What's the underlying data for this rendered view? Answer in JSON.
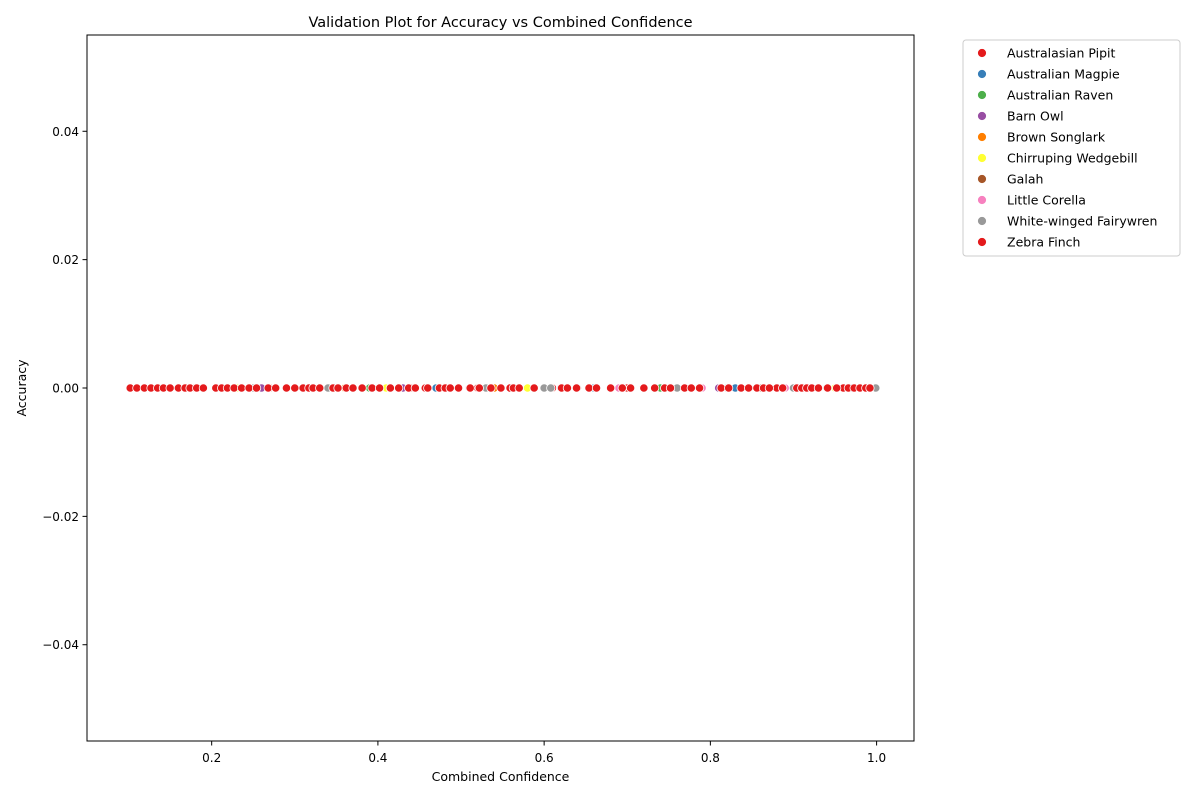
{
  "chart_data": {
    "type": "scatter",
    "title": "Validation Plot for Accuracy vs Combined Confidence",
    "xlabel": "Combined Confidence",
    "ylabel": "Accuracy",
    "xlim": [
      0.05,
      1.045
    ],
    "ylim": [
      -0.055,
      0.055
    ],
    "x_ticks": [
      0.2,
      0.4,
      0.6,
      0.8,
      1.0
    ],
    "x_tick_labels": [
      "0.2",
      "0.4",
      "0.6",
      "0.8",
      "1.0"
    ],
    "y_ticks": [
      -0.04,
      -0.02,
      0.0,
      0.02,
      0.04
    ],
    "y_tick_labels": [
      "−0.04",
      "−0.02",
      "0.00",
      "0.02",
      "0.04"
    ],
    "grid": false,
    "legend_position": "outside-top-right",
    "series": [
      {
        "name": "Australasian Pipit",
        "color": "#e41a1c",
        "x": [
          0.12,
          0.18,
          0.27,
          0.35,
          0.44,
          0.52,
          0.61,
          0.7,
          0.79,
          0.88,
          0.96
        ],
        "y": [
          0,
          0,
          0,
          0,
          0,
          0,
          0,
          0,
          0,
          0,
          0
        ]
      },
      {
        "name": "Australian Magpie",
        "color": "#377eb8",
        "x": [
          0.15,
          0.31,
          0.47,
          0.66,
          0.83,
          0.97
        ],
        "y": [
          0,
          0,
          0,
          0,
          0,
          0
        ]
      },
      {
        "name": "Australian Raven",
        "color": "#4daf4a",
        "x": [
          0.21,
          0.39,
          0.56,
          0.74,
          0.91
        ],
        "y": [
          0,
          0,
          0,
          0,
          0
        ]
      },
      {
        "name": "Barn Owl",
        "color": "#984ea3",
        "x": [
          0.26,
          0.43,
          0.62,
          0.81
        ],
        "y": [
          0,
          0,
          0,
          0
        ]
      },
      {
        "name": "Brown Songlark",
        "color": "#ff7f00",
        "x": [
          0.17,
          0.36,
          0.54,
          0.72,
          0.93
        ],
        "y": [
          0,
          0,
          0,
          0,
          0
        ]
      },
      {
        "name": "Chirruping Wedgebill",
        "color": "#ffff33",
        "x": [
          0.23,
          0.41,
          0.58,
          0.77,
          0.95
        ],
        "y": [
          0,
          0,
          0,
          0,
          0
        ]
      },
      {
        "name": "Galah",
        "color": "#a65628",
        "x": [
          0.29,
          0.48,
          0.64,
          0.86
        ],
        "y": [
          0,
          0,
          0,
          0
        ]
      },
      {
        "name": "Little Corella",
        "color": "#f781bf",
        "x": [
          0.33,
          0.51,
          0.69,
          0.79,
          0.89
        ],
        "y": [
          0,
          0,
          0,
          0,
          0
        ]
      },
      {
        "name": "White-winged Fairywren",
        "color": "#999999",
        "x": [
          0.14,
          0.25,
          0.34,
          0.46,
          0.53,
          0.6,
          0.608,
          0.68,
          0.76,
          0.82,
          0.9,
          0.94,
          0.999
        ],
        "y": [
          0,
          0,
          0,
          0,
          0,
          0,
          0,
          0,
          0,
          0,
          0,
          0,
          0
        ]
      },
      {
        "name": "Zebra Finch",
        "color": "#e41a1c",
        "x": [
          0.102,
          0.11,
          0.119,
          0.127,
          0.135,
          0.142,
          0.15,
          0.16,
          0.168,
          0.174,
          0.182,
          0.19,
          0.205,
          0.212,
          0.219,
          0.227,
          0.236,
          0.245,
          0.254,
          0.268,
          0.277,
          0.29,
          0.3,
          0.31,
          0.317,
          0.322,
          0.33,
          0.346,
          0.352,
          0.362,
          0.37,
          0.381,
          0.393,
          0.402,
          0.415,
          0.425,
          0.437,
          0.445,
          0.457,
          0.46,
          0.474,
          0.481,
          0.487,
          0.497,
          0.511,
          0.522,
          0.536,
          0.548,
          0.559,
          0.563,
          0.57,
          0.588,
          0.621,
          0.628,
          0.639,
          0.654,
          0.663,
          0.68,
          0.694,
          0.704,
          0.72,
          0.733,
          0.745,
          0.752,
          0.769,
          0.777,
          0.787,
          0.813,
          0.822,
          0.837,
          0.846,
          0.856,
          0.864,
          0.871,
          0.887,
          0.904,
          0.91,
          0.916,
          0.922,
          0.93,
          0.941,
          0.952,
          0.966,
          0.973,
          0.98,
          0.987,
          0.992
        ],
        "y": [
          0,
          0,
          0,
          0,
          0,
          0,
          0,
          0,
          0,
          0,
          0,
          0,
          0,
          0,
          0,
          0,
          0,
          0,
          0,
          0,
          0,
          0,
          0,
          0,
          0,
          0,
          0,
          0,
          0,
          0,
          0,
          0,
          0,
          0,
          0,
          0,
          0,
          0,
          0,
          0,
          0,
          0,
          0,
          0,
          0,
          0,
          0,
          0,
          0,
          0,
          0,
          0,
          0,
          0,
          0,
          0,
          0,
          0,
          0,
          0,
          0,
          0,
          0,
          0,
          0,
          0,
          0,
          0,
          0,
          0,
          0,
          0,
          0,
          0,
          0,
          0,
          0,
          0,
          0,
          0,
          0,
          0,
          0,
          0,
          0,
          0,
          0
        ]
      }
    ]
  }
}
